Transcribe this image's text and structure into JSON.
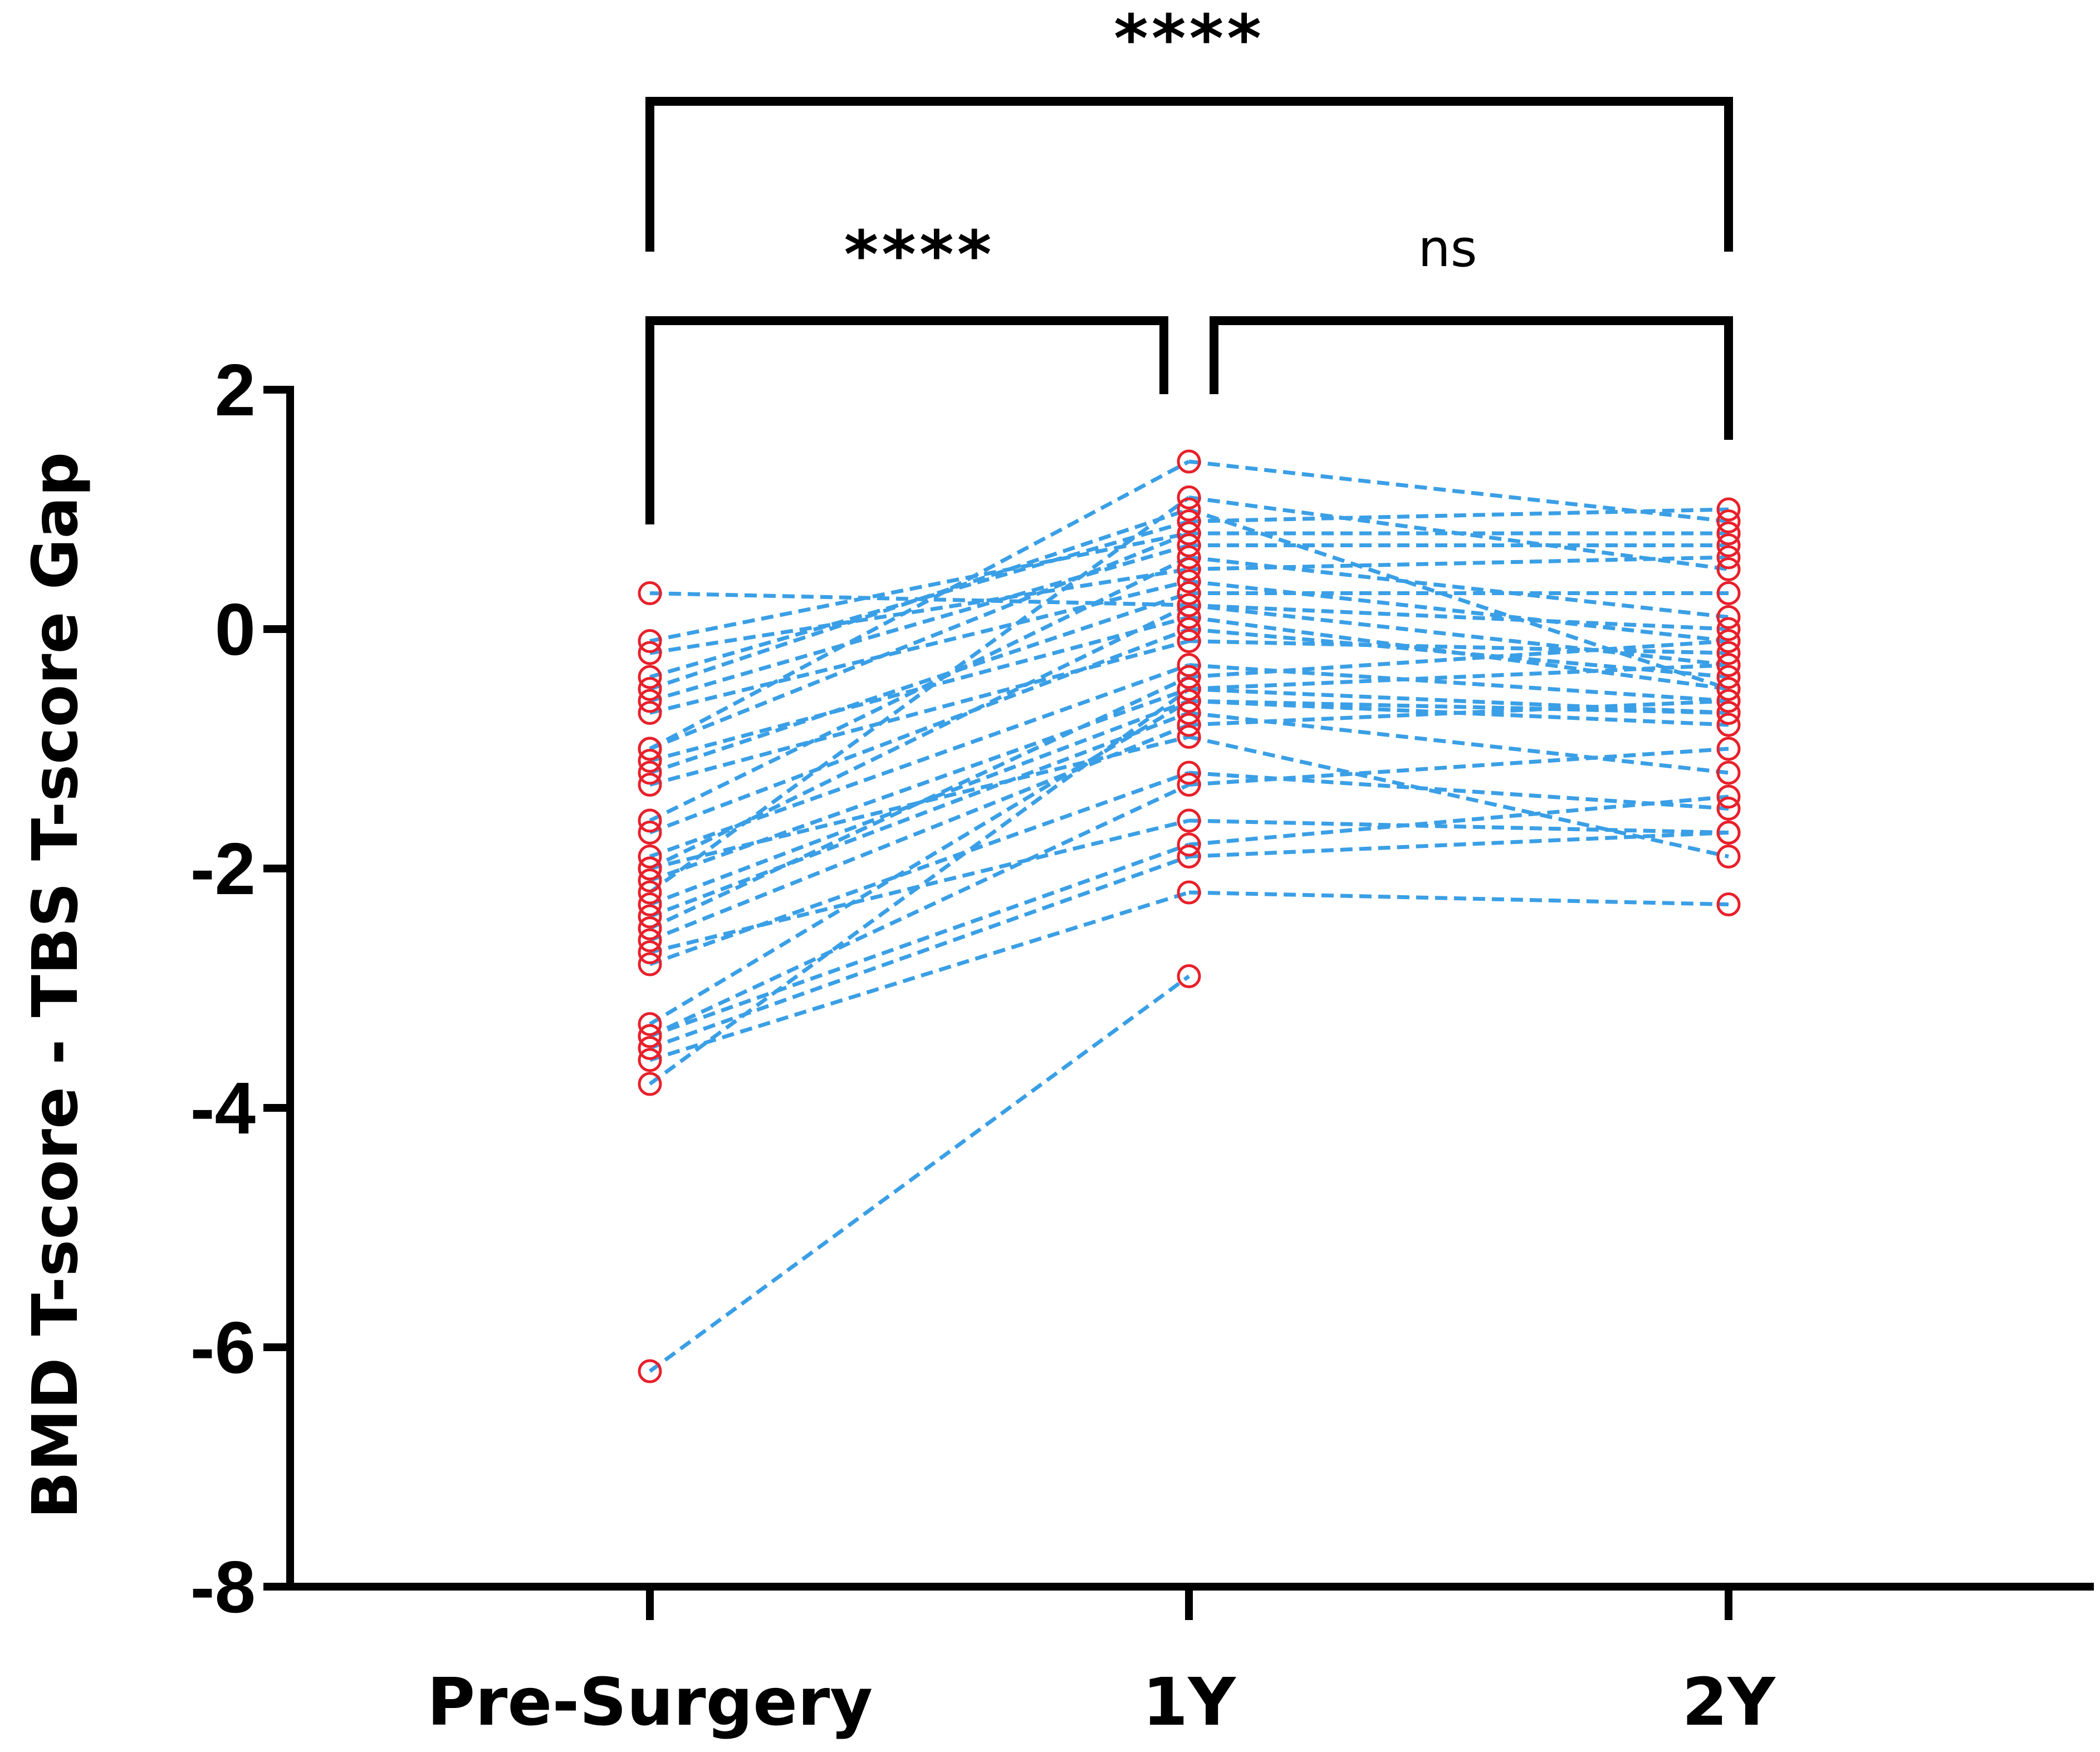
{
  "chart_data": {
    "type": "scatter",
    "subtype": "paired-dot-plot",
    "title": "",
    "xlabel": "",
    "ylabel": "BMD T-score - TBS T-score Gap",
    "ylim": [
      -8,
      2
    ],
    "yticks": [
      2,
      0,
      -2,
      -4,
      -6,
      -8
    ],
    "ytick_labels": [
      "2",
      "0",
      "-2",
      "-4",
      "-6",
      "-8"
    ],
    "categories": [
      "Pre-Surgery",
      "1Y",
      "2Y"
    ],
    "subjects": [
      {
        "id": "s01",
        "values": [
          -6.2,
          -2.9,
          null
        ]
      },
      {
        "id": "s02",
        "values": [
          0.3,
          0.2,
          0.0
        ]
      },
      {
        "id": "s03",
        "values": [
          -0.1,
          0.8,
          0.8
        ]
      },
      {
        "id": "s04",
        "values": [
          -0.2,
          0.5,
          0.6
        ]
      },
      {
        "id": "s05",
        "values": [
          -0.4,
          0.9,
          1.0
        ]
      },
      {
        "id": "s06",
        "values": [
          -0.6,
          0.7,
          0.7
        ]
      },
      {
        "id": "s07",
        "values": [
          -0.7,
          0.4,
          -0.1
        ]
      },
      {
        "id": "s08",
        "values": [
          -1.0,
          0.8,
          0.8
        ]
      },
      {
        "id": "s09",
        "values": [
          -1.1,
          0.1,
          -0.5
        ]
      },
      {
        "id": "s10",
        "values": [
          -1.2,
          0.3,
          0.3
        ]
      },
      {
        "id": "s11",
        "values": [
          -1.3,
          -0.1,
          -0.2
        ]
      },
      {
        "id": "s12",
        "values": [
          -1.6,
          0.6,
          0.1
        ]
      },
      {
        "id": "s13",
        "values": [
          -1.7,
          0.0,
          -0.4
        ]
      },
      {
        "id": "s14",
        "values": [
          -1.9,
          -0.3,
          -0.6
        ]
      },
      {
        "id": "s15",
        "values": [
          -2.0,
          0.2,
          -0.3
        ]
      },
      {
        "id": "s16",
        "values": [
          -2.1,
          -0.5,
          -0.7
        ]
      },
      {
        "id": "s17",
        "values": [
          -2.3,
          -0.6,
          -0.8
        ]
      },
      {
        "id": "s18",
        "values": [
          -2.4,
          -0.7,
          -1.2
        ]
      },
      {
        "id": "s19",
        "values": [
          -2.5,
          -0.4,
          -0.1
        ]
      },
      {
        "id": "s20",
        "values": [
          -2.6,
          -0.8,
          -0.6
        ]
      },
      {
        "id": "s21",
        "values": [
          -2.7,
          -1.6,
          -1.7
        ]
      },
      {
        "id": "s22",
        "values": [
          -2.8,
          -1.2,
          -1.5
        ]
      },
      {
        "id": "s23",
        "values": [
          -3.3,
          -0.6,
          -0.7
        ]
      },
      {
        "id": "s24",
        "values": [
          -3.4,
          -1.8,
          -1.4
        ]
      },
      {
        "id": "s25",
        "values": [
          -3.5,
          -1.9,
          -1.7
        ]
      },
      {
        "id": "s26",
        "values": [
          -3.6,
          -2.2,
          -2.3
        ]
      },
      {
        "id": "s27",
        "values": [
          -3.8,
          -0.5,
          -0.3
        ]
      },
      {
        "id": "s28",
        "values": [
          -1.0,
          1.4,
          0.9
        ]
      },
      {
        "id": "s29",
        "values": [
          -2.2,
          1.1,
          0.5
        ]
      },
      {
        "id": "s30",
        "values": [
          -0.5,
          1.0,
          -0.5
        ]
      },
      {
        "id": "s31",
        "values": [
          -3.4,
          -1.3,
          -1.0
        ]
      },
      {
        "id": "s32",
        "values": [
          -2.0,
          -0.9,
          -1.9
        ]
      }
    ],
    "significance": [
      {
        "from": "Pre-Surgery",
        "to": "1Y",
        "label": "****",
        "level": 1
      },
      {
        "from": "1Y",
        "to": "2Y",
        "label": "ns",
        "level": 1
      },
      {
        "from": "Pre-Surgery",
        "to": "2Y",
        "label": "****",
        "level": 2
      }
    ],
    "colors": {
      "line": "#3a9fe6",
      "marker": "#e8202a",
      "axis": "#000000"
    }
  }
}
